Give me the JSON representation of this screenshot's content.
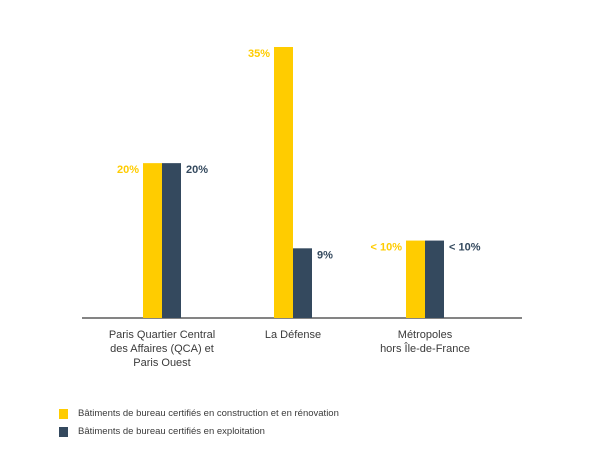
{
  "chart_data": {
    "type": "bar",
    "title": "",
    "xlabel": "",
    "ylabel": "",
    "ylim": [
      0,
      35
    ],
    "categories": [
      [
        "Paris Quartier Central",
        "des Affaires (QCA) et",
        "Paris Ouest"
      ],
      [
        "La Défense"
      ],
      [
        "Métropoles",
        "hors Île-de-France"
      ]
    ],
    "series": [
      {
        "name": "Bâtiments de bureau certifiés en construction et en rénovation",
        "color": "#FFCC00",
        "values": [
          20,
          35,
          10
        ],
        "labels": [
          "20%",
          "35%",
          "< 10%"
        ]
      },
      {
        "name": "Bâtiments de bureau certifiés en exploitation",
        "color": "#34495E",
        "values": [
          20,
          9,
          10
        ],
        "labels": [
          "20%",
          "9%",
          "< 10%"
        ]
      }
    ],
    "grid": false,
    "legend": "bottom-left"
  }
}
